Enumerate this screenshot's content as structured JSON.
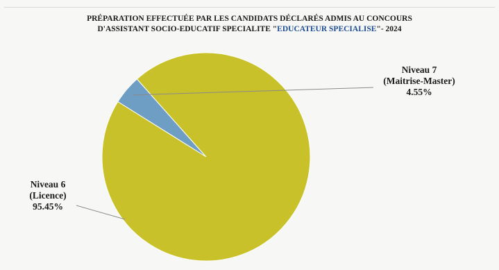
{
  "title": {
    "line1": "PRÉPARATION EFFECTUÉE PAR LES CANDIDATS DÉCLARÉS ADMIS AU CONCOURS",
    "line2_prefix": "D'ASSISTANT SOCIO-EDUCATIF SPECIALITE \"",
    "line2_highlight": "EDUCATEUR SPECIALISE",
    "line2_suffix": "\"- 2024"
  },
  "colors": {
    "niveau7": "#6f9ec4",
    "niveau6": "#c9c12a",
    "highlight": "#1f4e96",
    "leader": "#8a8a8a"
  },
  "chart_data": {
    "type": "pie",
    "title": "PRÉPARATION EFFECTUÉE PAR LES CANDIDATS DÉCLARÉS ADMIS AU CONCOURS D'ASSISTANT SOCIO-EDUCATIF SPECIALITE \"EDUCATEUR SPECIALISE\"- 2024",
    "slices": [
      {
        "name": "Niveau 7",
        "sub": "(Maitrise-Master)",
        "value": 4.55,
        "label": "4.55%"
      },
      {
        "name": "Niveau 6",
        "sub": "(Licence)",
        "value": 95.45,
        "label": "95.45%"
      }
    ]
  }
}
